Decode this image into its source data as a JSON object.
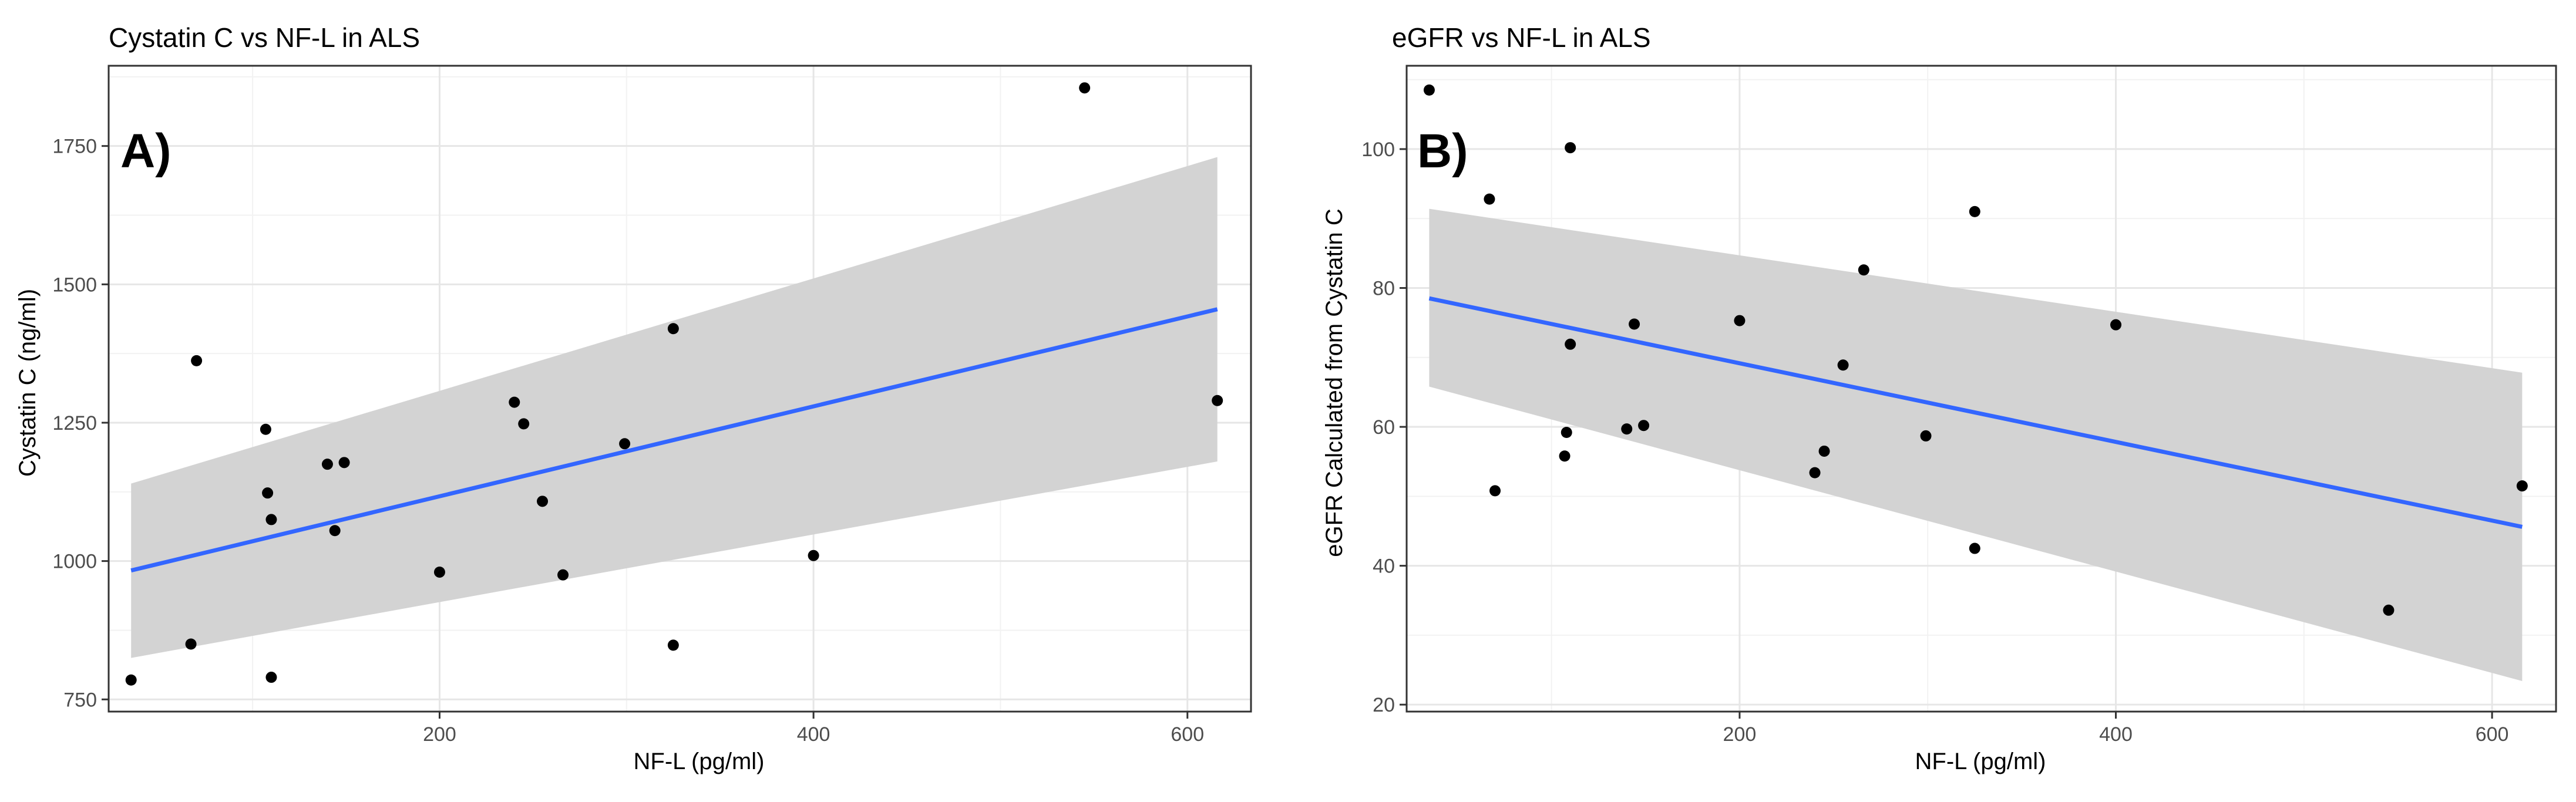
{
  "chart_data": [
    {
      "type": "scatter",
      "title": "Cystatin C vs NF-L in ALS",
      "panel_label": "A)",
      "xlabel": "NF-L (pg/ml)",
      "ylabel": "Cystatin C (ng/ml)",
      "xlim": [
        23,
        634
      ],
      "ylim": [
        728,
        1895
      ],
      "x_ticks": [
        200,
        400,
        600
      ],
      "y_ticks": [
        750,
        1000,
        1250,
        1500,
        1750
      ],
      "grid": true,
      "points": [
        {
          "x": 35,
          "y": 785
        },
        {
          "x": 67,
          "y": 850
        },
        {
          "x": 70,
          "y": 1362
        },
        {
          "x": 107,
          "y": 1238
        },
        {
          "x": 108,
          "y": 1123
        },
        {
          "x": 110,
          "y": 1075
        },
        {
          "x": 110,
          "y": 790
        },
        {
          "x": 140,
          "y": 1175
        },
        {
          "x": 144,
          "y": 1055
        },
        {
          "x": 149,
          "y": 1178
        },
        {
          "x": 200,
          "y": 980
        },
        {
          "x": 240,
          "y": 1287
        },
        {
          "x": 245,
          "y": 1248
        },
        {
          "x": 255,
          "y": 1108
        },
        {
          "x": 266,
          "y": 975
        },
        {
          "x": 299,
          "y": 1212
        },
        {
          "x": 325,
          "y": 1420
        },
        {
          "x": 325,
          "y": 848
        },
        {
          "x": 400,
          "y": 1010
        },
        {
          "x": 545,
          "y": 1855
        },
        {
          "x": 616,
          "y": 1290
        }
      ],
      "fit_line": {
        "x": [
          35,
          616
        ],
        "y": [
          983,
          1455
        ],
        "color": "#3366ff"
      },
      "ci_band": {
        "x": [
          35,
          616
        ],
        "lower": [
          825,
          1180
        ],
        "upper": [
          1140,
          1730
        ],
        "color": "#d3d3d3"
      },
      "point_color": "#000000"
    },
    {
      "type": "scatter",
      "title": "eGFR vs NF-L in ALS",
      "panel_label": "B)",
      "xlabel": "NF-L (pg/ml)",
      "ylabel": "eGFR Calculated from Cystatin C",
      "xlim": [
        23,
        634
      ],
      "ylim": [
        19,
        112
      ],
      "x_ticks": [
        200,
        400,
        600
      ],
      "y_ticks": [
        20,
        40,
        60,
        80,
        100
      ],
      "grid": true,
      "points": [
        {
          "x": 35,
          "y": 108.5
        },
        {
          "x": 67,
          "y": 92.8
        },
        {
          "x": 70,
          "y": 50.8
        },
        {
          "x": 107,
          "y": 55.8
        },
        {
          "x": 108,
          "y": 59.2
        },
        {
          "x": 110,
          "y": 71.9
        },
        {
          "x": 110,
          "y": 100.2
        },
        {
          "x": 140,
          "y": 59.7
        },
        {
          "x": 144,
          "y": 74.8
        },
        {
          "x": 149,
          "y": 60.2
        },
        {
          "x": 200,
          "y": 75.3
        },
        {
          "x": 240,
          "y": 53.4
        },
        {
          "x": 245,
          "y": 56.5
        },
        {
          "x": 255,
          "y": 68.9
        },
        {
          "x": 266,
          "y": 82.6
        },
        {
          "x": 299,
          "y": 58.7
        },
        {
          "x": 325,
          "y": 91.0
        },
        {
          "x": 325,
          "y": 42.5
        },
        {
          "x": 400,
          "y": 74.7
        },
        {
          "x": 545,
          "y": 33.6
        },
        {
          "x": 616,
          "y": 51.5
        }
      ],
      "fit_line": {
        "x": [
          35,
          616
        ],
        "y": [
          78.5,
          45.6
        ],
        "color": "#3366ff"
      },
      "ci_band": {
        "x": [
          35,
          616
        ],
        "lower": [
          65.8,
          23.4
        ],
        "upper": [
          91.4,
          67.8
        ],
        "color": "#d3d3d3"
      },
      "point_color": "#000000"
    }
  ]
}
